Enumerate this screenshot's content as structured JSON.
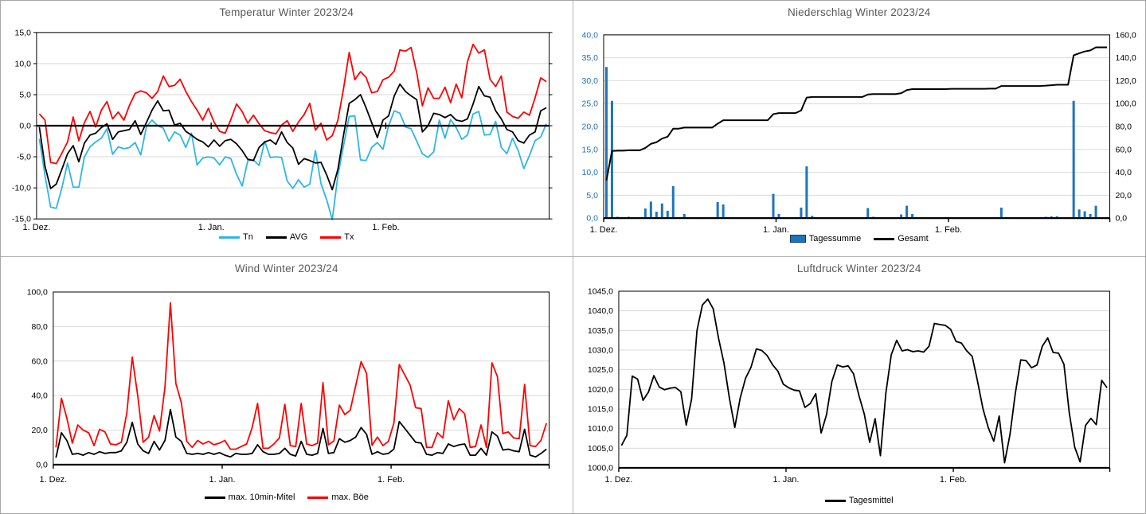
{
  "chart_data": {
    "temperature": {
      "type": "line",
      "title": "Temperatur Winter 2023/24",
      "x_tick_labels": [
        "1. Dez.",
        "1. Jan.",
        "1. Feb."
      ],
      "x_tick_days": [
        0,
        31,
        62
      ],
      "x_range_days": 91,
      "ylim": [
        -15,
        15
      ],
      "axis_at": 0,
      "ytick_values": [
        15,
        10,
        5,
        0,
        -5,
        -10,
        -15
      ],
      "ytick_labels": [
        "15,0",
        "10,0",
        "5,0",
        "0,0",
        "-5,0",
        "-10,0",
        "-15,0"
      ],
      "legend": [
        "Tn",
        "AVG",
        "Tx"
      ],
      "series": [
        {
          "name": "Tn",
          "color": "#2cb6e8",
          "values": [
            -2.1,
            -8.0,
            -13.1,
            -13.3,
            -10.0,
            -6.0,
            -9.9,
            -9.9,
            -5.0,
            -3.4,
            -2.6,
            -2.0,
            -0.5,
            -4.6,
            -3.4,
            -3.7,
            -3.5,
            -2.7,
            -4.7,
            -0.2,
            0.9,
            0.0,
            -0.4,
            -2.5,
            -1.0,
            -1.5,
            -3.5,
            -1.2,
            -6.3,
            -5.2,
            -5.0,
            -5.2,
            -6.3,
            -5.0,
            -5.3,
            -7.8,
            -9.7,
            -5.6,
            -5.5,
            -6.4,
            -2.5,
            -5.1,
            -5.0,
            -5.1,
            -8.9,
            -10.1,
            -8.7,
            -9.9,
            -9.4,
            -4.0,
            -9.3,
            -11.9,
            -15.1,
            -8.0,
            -3.2,
            1.5,
            1.6,
            -5.5,
            -5.6,
            -3.5,
            -2.7,
            -3.8,
            0.0,
            2.4,
            2.0,
            -0.2,
            -0.5,
            -2.5,
            -4.5,
            -5.1,
            -4.2,
            0.9,
            -2.0,
            1.0,
            -0.3,
            -2.2,
            -1.5,
            1.9,
            2.3,
            -1.5,
            -1.4,
            0.7,
            -3.5,
            -4.5,
            -2.0,
            -4.0,
            -6.9,
            -4.8,
            -2.4,
            -1.8,
            0.3
          ]
        },
        {
          "name": "AVG",
          "color": "#000000",
          "values": [
            -0.2,
            -6.5,
            -10.1,
            -9.4,
            -7.0,
            -4.5,
            -3.2,
            -5.8,
            -2.8,
            -1.5,
            -1.2,
            -0.3,
            0.3,
            -2.2,
            -1.0,
            -0.8,
            -0.6,
            0.8,
            -1.4,
            0.5,
            2.5,
            4.0,
            2.4,
            2.5,
            0.1,
            0.4,
            -0.9,
            -1.5,
            -2.2,
            -2.6,
            -3.4,
            -2.3,
            -3.3,
            -2.4,
            -2.2,
            -2.9,
            -4.0,
            -5.4,
            -5.6,
            -3.5,
            -2.6,
            -2.3,
            -3.0,
            -1.0,
            -2.7,
            -3.6,
            -6.2,
            -5.3,
            -5.6,
            -6.0,
            -5.9,
            -7.9,
            -10.3,
            -7.0,
            -1.5,
            3.6,
            4.2,
            5.0,
            2.9,
            0.5,
            -1.9,
            0.9,
            1.6,
            4.8,
            6.7,
            5.5,
            4.8,
            4.2,
            -1.0,
            0.0,
            2.0,
            1.8,
            1.3,
            1.8,
            0.9,
            0.7,
            1.1,
            3.5,
            6.3,
            4.8,
            4.6,
            2.4,
            1.1,
            -0.6,
            -1.0,
            -2.4,
            -2.8,
            -1.5,
            -1.0,
            2.4,
            2.9
          ]
        },
        {
          "name": "Tx",
          "color": "#fe0000",
          "values": [
            1.9,
            0.9,
            -5.9,
            -6.1,
            -4.4,
            -2.6,
            1.4,
            -2.4,
            0.5,
            2.3,
            -0.2,
            2.5,
            3.9,
            1.1,
            2.2,
            0.9,
            3.3,
            5.2,
            5.6,
            5.3,
            4.4,
            5.5,
            8.0,
            6.3,
            6.5,
            7.5,
            5.5,
            3.9,
            2.5,
            0.9,
            2.8,
            0.6,
            -0.9,
            -1.2,
            1.0,
            3.5,
            2.3,
            0.4,
            1.7,
            0.3,
            -0.8,
            -1.1,
            -1.3,
            0.1,
            0.8,
            -0.9,
            0.6,
            1.8,
            3.6,
            -0.7,
            0.4,
            -2.3,
            -1.6,
            0.9,
            6.0,
            11.8,
            7.4,
            8.7,
            7.8,
            5.3,
            5.5,
            7.4,
            7.8,
            8.8,
            12.2,
            12.0,
            12.6,
            8.5,
            3.2,
            6.1,
            4.4,
            4.4,
            6.2,
            3.7,
            6.7,
            4.5,
            10.3,
            13.1,
            11.7,
            12.2,
            7.5,
            6.3,
            8.0,
            2.2,
            1.5,
            1.2,
            2.2,
            1.7,
            4.5,
            7.7,
            7.1
          ]
        }
      ]
    },
    "precipitation": {
      "type": "bar+line",
      "title": "Niederschlag Winter 2023/24",
      "x_tick_labels": [
        "1. Dez.",
        "1. Jan.",
        "1. Feb."
      ],
      "x_tick_days": [
        0,
        31,
        62
      ],
      "x_range_days": 91,
      "ylim": [
        0,
        40
      ],
      "ytick_values": [
        40,
        35,
        30,
        25,
        20,
        15,
        10,
        5,
        0
      ],
      "ytick_labels": [
        "40,0",
        "35,0",
        "30,0",
        "25,0",
        "20,0",
        "15,0",
        "10,0",
        "5,0",
        "0,0"
      ],
      "ytick_color": "#1f6fb5",
      "y2lim": [
        0,
        160
      ],
      "y2tick_values": [
        160,
        140,
        120,
        100,
        80,
        60,
        40,
        20,
        0
      ],
      "y2tick_labels": [
        "160,0",
        "140,0",
        "120,0",
        "100,0",
        "80,0",
        "60,0",
        "40,0",
        "20,0",
        "0,0"
      ],
      "legend": [
        "Tagessumme",
        "Gesamt"
      ],
      "bars": {
        "name": "Tagessumme",
        "color": "#1c75bc",
        "values": [
          33.0,
          25.6,
          0.3,
          0,
          0.3,
          0,
          0,
          2.1,
          3.6,
          1.4,
          3.2,
          1.6,
          7.0,
          0,
          0.9,
          0,
          0,
          0,
          0,
          0,
          3.5,
          3.0,
          0,
          0,
          0,
          0,
          0,
          0,
          0,
          0,
          5.3,
          0.9,
          0,
          0,
          0,
          2.3,
          11.3,
          0.5,
          0,
          0,
          0,
          0,
          0,
          0,
          0,
          0,
          0,
          2.2,
          0.3,
          0,
          0,
          0,
          0,
          0.8,
          2.7,
          0.9,
          0,
          0,
          0,
          0,
          0,
          0,
          0.2,
          0,
          0,
          0,
          0,
          0,
          0,
          0.2,
          0,
          2.3,
          0,
          0,
          0,
          0,
          0,
          0,
          0,
          0.3,
          0.4,
          0.4,
          0,
          0,
          25.6,
          1.9,
          1.5,
          0.9,
          2.7,
          0,
          0
        ]
      },
      "cumulative": {
        "name": "Gesamt",
        "color": "#000000",
        "axis": "right",
        "note": "running sum of Tagessumme values, plotted on right axis"
      }
    },
    "wind": {
      "type": "line",
      "title": "Wind Winter 2023/24",
      "x_tick_labels": [
        "1. Dez.",
        "1. Jan.",
        "1. Feb."
      ],
      "x_tick_days": [
        0,
        31,
        62
      ],
      "x_range_days": 91,
      "ylim": [
        0,
        100
      ],
      "ytick_values": [
        100,
        80,
        60,
        40,
        20,
        0
      ],
      "ytick_labels": [
        "100,0",
        "80,0",
        "60,0",
        "40,0",
        "20,0",
        "0,0"
      ],
      "legend": [
        "max. 10min-Mitel",
        "max. Böe"
      ],
      "series": [
        {
          "name": "max. 10min-Mitel",
          "color": "#000000",
          "values": [
            4,
            18.5,
            14,
            6,
            6.5,
            5.5,
            7,
            6,
            7.5,
            6.5,
            7,
            7,
            8,
            13,
            24.5,
            12,
            8,
            6.5,
            13.5,
            8.5,
            14,
            32,
            16,
            13.5,
            6.5,
            6,
            6.5,
            6,
            7,
            6,
            7,
            5.5,
            4.5,
            6.5,
            6,
            6,
            6.5,
            11.5,
            7.5,
            6,
            6,
            6.5,
            9.5,
            6,
            5,
            13.5,
            6,
            5.5,
            6.5,
            21,
            6.5,
            7,
            15,
            13,
            14,
            16,
            21.5,
            17.5,
            6,
            7.5,
            6,
            6.5,
            9,
            25,
            21,
            17,
            13,
            12.5,
            6,
            5.5,
            7,
            6.5,
            12,
            10.5,
            11.5,
            12,
            5.5,
            5.5,
            9.5,
            5.5,
            19,
            16.5,
            8.5,
            9,
            8,
            7.5,
            20.5,
            5.5,
            4.5,
            6.5,
            9
          ]
        },
        {
          "name": "max. Böe",
          "color": "#fe0000",
          "values": [
            10,
            38.5,
            27,
            12.5,
            23,
            20,
            18.5,
            11,
            20.5,
            19,
            12,
            11.5,
            13,
            30,
            62.3,
            40,
            13,
            16,
            28.5,
            19.5,
            45,
            93.7,
            47,
            36,
            13.5,
            10,
            14,
            12,
            13.5,
            11.5,
            12.5,
            14,
            9,
            9,
            10.5,
            12,
            21.5,
            35.5,
            9.5,
            9.5,
            12,
            15.5,
            35,
            11,
            10.5,
            35.5,
            12,
            11,
            12.5,
            47.5,
            11.5,
            13.7,
            34.5,
            29,
            31.5,
            45.8,
            59.7,
            52.8,
            11.2,
            16,
            11,
            13.5,
            24,
            58,
            52,
            46,
            33,
            32.5,
            10,
            10,
            18.5,
            15.5,
            37,
            26,
            32.5,
            29.5,
            10,
            10.5,
            23,
            10,
            59,
            51,
            18,
            19,
            15.5,
            15,
            46.5,
            11,
            10.5,
            14,
            24
          ]
        }
      ]
    },
    "pressure": {
      "type": "line",
      "title": "Luftdruck Winter 2023/24",
      "x_tick_labels": [
        "1. Dez.",
        "1. Jan.",
        "1. Feb."
      ],
      "x_tick_days": [
        0,
        31,
        62
      ],
      "x_range_days": 91,
      "ylim": [
        1000,
        1045
      ],
      "ytick_values": [
        1045,
        1040,
        1035,
        1030,
        1025,
        1020,
        1015,
        1010,
        1005,
        1000
      ],
      "ytick_labels": [
        "1045,0",
        "1040,0",
        "1035,0",
        "1030,0",
        "1025,0",
        "1020,0",
        "1015,0",
        "1010,0",
        "1005,0",
        "1000,0"
      ],
      "legend": [
        "Tagesmittel"
      ],
      "series": [
        {
          "name": "Tagesmittel",
          "color": "#000000",
          "values": [
            1005.7,
            1008.3,
            1023.4,
            1022.6,
            1017.2,
            1019.3,
            1023.5,
            1020.6,
            1019.9,
            1020.3,
            1020.5,
            1019.4,
            1010.9,
            1017.5,
            1035.0,
            1041.5,
            1043.0,
            1040.5,
            1033.0,
            1026.7,
            1017.8,
            1010.3,
            1017.8,
            1022.8,
            1025.6,
            1030.3,
            1029.9,
            1028.6,
            1026.3,
            1024.6,
            1021.3,
            1020.4,
            1019.8,
            1019.6,
            1015.4,
            1016.4,
            1018.9,
            1008.9,
            1013.5,
            1022.0,
            1026.2,
            1025.7,
            1026.0,
            1024.0,
            1018.5,
            1013.7,
            1006.5,
            1012.5,
            1003.1,
            1019.0,
            1028.8,
            1032.5,
            1029.8,
            1030.1,
            1029.6,
            1029.8,
            1029.5,
            1031.0,
            1036.8,
            1036.5,
            1036.3,
            1035.3,
            1032.2,
            1031.8,
            1029.8,
            1028.4,
            1022.0,
            1015.0,
            1010.2,
            1006.8,
            1013.2,
            1001.3,
            1008.5,
            1019.0,
            1027.5,
            1027.3,
            1025.5,
            1026.2,
            1031.0,
            1033.1,
            1029.4,
            1029.2,
            1026.4,
            1014.0,
            1005.3,
            1001.5,
            1010.8,
            1012.6,
            1011.0,
            1022.3,
            1020.4
          ]
        }
      ]
    }
  }
}
